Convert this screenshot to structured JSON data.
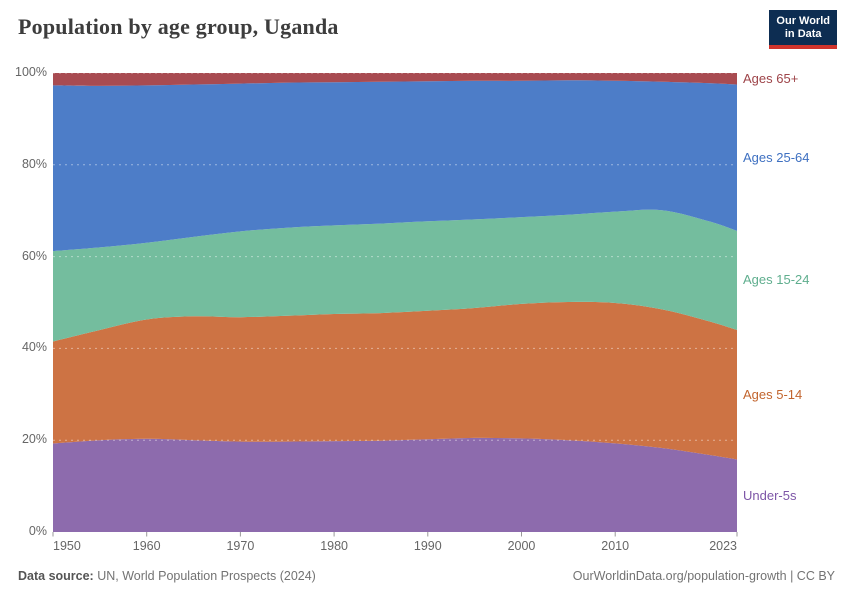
{
  "header": {
    "title": "Population by age group, Uganda",
    "logo": {
      "line1": "Our World",
      "line2": "in Data"
    }
  },
  "colors": {
    "logo_bg": "#0d2d52",
    "logo_accent": "#d0342c",
    "title_text": "#3d3d3d",
    "axis_text": "#666666",
    "footer_text": "#737373",
    "gridline": "rgba(255,255,255,0.45)",
    "tick": "#999999"
  },
  "chart_data": {
    "type": "area",
    "stacked": true,
    "normalized_percent": true,
    "title": "Population by age group, Uganda",
    "xlabel": "",
    "ylabel": "",
    "ylim": [
      0,
      100
    ],
    "grid": "dashed-horizontal",
    "legend_position": "right-of-plot",
    "x": [
      1950,
      1955,
      1960,
      1965,
      1970,
      1975,
      1980,
      1985,
      1990,
      1995,
      2000,
      2005,
      2010,
      2015,
      2020,
      2023
    ],
    "xticks": [
      1950,
      1960,
      1970,
      1980,
      1990,
      2000,
      2010,
      2023
    ],
    "yticks": [
      0,
      20,
      40,
      60,
      80,
      100
    ],
    "ytick_labels": [
      "0%",
      "20%",
      "40%",
      "60%",
      "80%",
      "100%"
    ],
    "series": [
      {
        "name": "Under-5s",
        "color": "#8d6bad",
        "label_color": "#7d56a7",
        "values": [
          19.3,
          20.0,
          20.3,
          20.0,
          19.7,
          19.7,
          19.8,
          19.9,
          20.2,
          20.5,
          20.4,
          20.0,
          19.3,
          18.3,
          16.8,
          15.8
        ]
      },
      {
        "name": "Ages 5-14",
        "color": "#cd7344",
        "label_color": "#c2652e",
        "values": [
          22.2,
          24.0,
          26.0,
          27.0,
          27.1,
          27.4,
          27.7,
          27.8,
          28.0,
          28.3,
          29.3,
          30.1,
          30.6,
          30.2,
          29.1,
          28.2
        ]
      },
      {
        "name": "Ages 15-24",
        "color": "#74bd9e",
        "label_color": "#5fae8e",
        "values": [
          19.7,
          18.0,
          16.7,
          17.3,
          18.7,
          19.2,
          19.3,
          19.5,
          19.5,
          19.3,
          18.9,
          19.0,
          19.9,
          21.6,
          21.8,
          21.6
        ]
      },
      {
        "name": "Ages 25-64",
        "color": "#4d7dc8",
        "label_color": "#3e70c1",
        "values": [
          36.1,
          35.2,
          34.3,
          33.2,
          32.2,
          31.6,
          31.2,
          30.9,
          30.5,
          30.2,
          29.7,
          29.3,
          28.5,
          28.0,
          30.1,
          31.9
        ]
      },
      {
        "name": "Ages 65+",
        "color": "#a84b51",
        "label_color": "#9e4449",
        "values": [
          2.7,
          2.8,
          2.7,
          2.5,
          2.3,
          2.1,
          2.0,
          1.9,
          1.8,
          1.7,
          1.7,
          1.6,
          1.7,
          1.9,
          2.2,
          2.5
        ]
      }
    ]
  },
  "footer": {
    "source_label": "Data source:",
    "source_value": "UN, World Population Prospects (2024)",
    "link": "OurWorldinData.org/population-growth",
    "divider": "|",
    "license": "CC BY"
  }
}
